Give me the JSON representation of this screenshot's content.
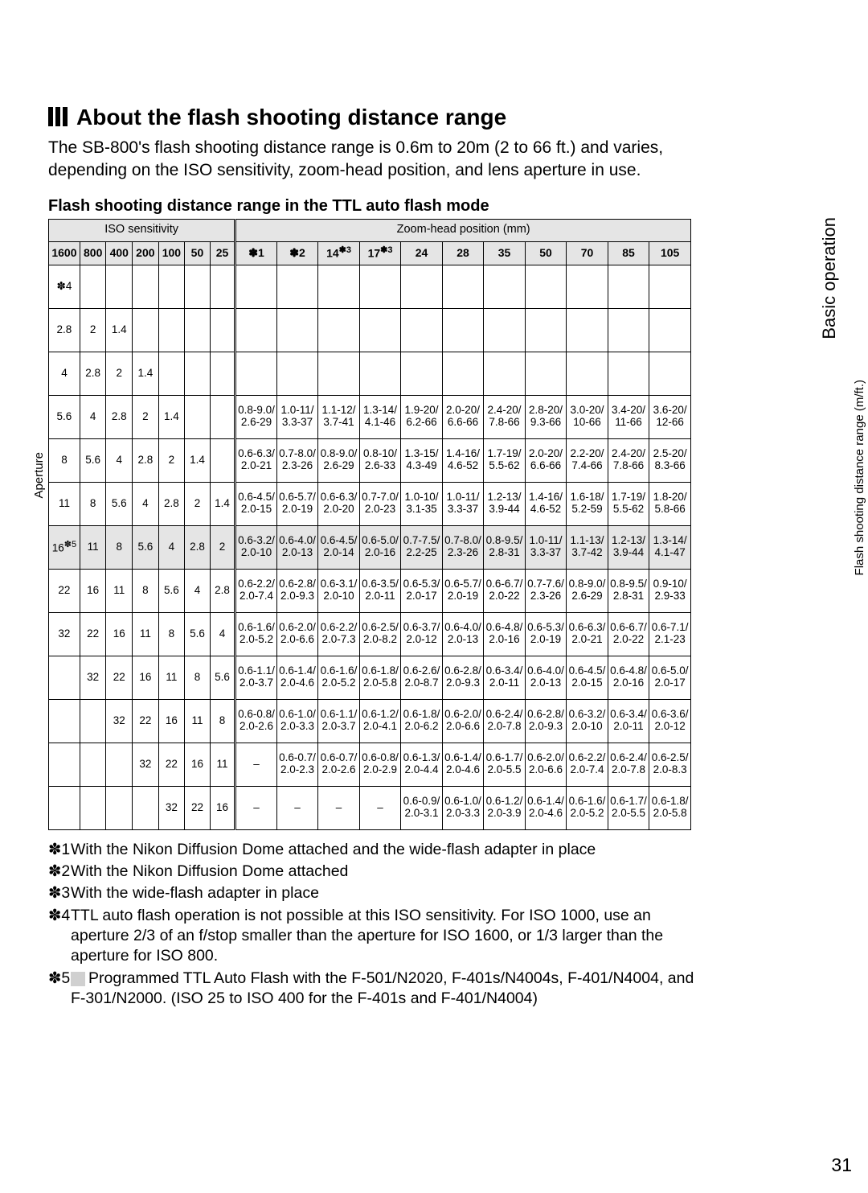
{
  "section_tab": "Basic operation",
  "title": "About the flash shooting distance range",
  "intro": "The SB-800's flash shooting distance range is 0.6m to 20m (2 to 66 ft.) and varies, depending on the ISO sensitivity, zoom-head position, and lens aperture in use.",
  "subtitle": "Flash shooting distance range in the TTL auto flash mode",
  "iso_label": "ISO sensitivity",
  "zoom_label": "Zoom-head position (mm)",
  "side_left": "Aperture",
  "side_right": "Flash shooting distance range (m/ft.)",
  "iso_cols": [
    "1600",
    "800",
    "400",
    "200",
    "100",
    "50",
    "25"
  ],
  "zoom_cols": [
    "✽1",
    "✽2",
    "14",
    "17",
    "24",
    "28",
    "35",
    "50",
    "70",
    "85",
    "105"
  ],
  "zoom_sup": {
    "2": "✽3",
    "3": "✽3"
  },
  "aperture_rows": [
    [
      "✽4",
      "",
      "",
      "",
      "",
      "",
      ""
    ],
    [
      "2.8",
      "2",
      "1.4",
      "",
      "",
      "",
      ""
    ],
    [
      "4",
      "2.8",
      "2",
      "1.4",
      "",
      "",
      ""
    ],
    [
      "5.6",
      "4",
      "2.8",
      "2",
      "1.4",
      "",
      ""
    ],
    [
      "8",
      "5.6",
      "4",
      "2.8",
      "2",
      "1.4",
      ""
    ],
    [
      "11",
      "8",
      "5.6",
      "4",
      "2.8",
      "2",
      "1.4"
    ],
    [
      "16",
      "11",
      "8",
      "5.6",
      "4",
      "2.8",
      "2"
    ],
    [
      "22",
      "16",
      "11",
      "8",
      "5.6",
      "4",
      "2.8"
    ],
    [
      "32",
      "22",
      "16",
      "11",
      "8",
      "5.6",
      "4"
    ],
    [
      "",
      "32",
      "22",
      "16",
      "11",
      "8",
      "5.6"
    ],
    [
      "",
      "",
      "32",
      "22",
      "16",
      "11",
      "8"
    ],
    [
      "",
      "",
      "",
      "32",
      "22",
      "16",
      "11"
    ],
    [
      "",
      "",
      "",
      "",
      "32",
      "22",
      "16"
    ]
  ],
  "row16_sup": "✽5",
  "data_rows": [
    [
      "",
      "",
      "",
      "",
      "",
      "",
      "",
      "",
      "",
      "",
      ""
    ],
    [
      "",
      "",
      "",
      "",
      "",
      "",
      "",
      "",
      "",
      "",
      ""
    ],
    [
      "",
      "",
      "",
      "",
      "",
      "",
      "",
      "",
      "",
      "",
      ""
    ],
    [
      "0.8-9.0/ 2.6-29",
      "1.0-11/ 3.3-37",
      "1.1-12/ 3.7-41",
      "1.3-14/ 4.1-46",
      "1.9-20/ 6.2-66",
      "2.0-20/ 6.6-66",
      "2.4-20/ 7.8-66",
      "2.8-20/ 9.3-66",
      "3.0-20/ 10-66",
      "3.4-20/ 11-66",
      "3.6-20/ 12-66"
    ],
    [
      "0.6-6.3/ 2.0-21",
      "0.7-8.0/ 2.3-26",
      "0.8-9.0/ 2.6-29",
      "0.8-10/ 2.6-33",
      "1.3-15/ 4.3-49",
      "1.4-16/ 4.6-52",
      "1.7-19/ 5.5-62",
      "2.0-20/ 6.6-66",
      "2.2-20/ 7.4-66",
      "2.4-20/ 7.8-66",
      "2.5-20/ 8.3-66"
    ],
    [
      "0.6-4.5/ 2.0-15",
      "0.6-5.7/ 2.0-19",
      "0.6-6.3/ 2.0-20",
      "0.7-7.0/ 2.0-23",
      "1.0-10/ 3.1-35",
      "1.0-11/ 3.3-37",
      "1.2-13/ 3.9-44",
      "1.4-16/ 4.6-52",
      "1.6-18/ 5.2-59",
      "1.7-19/ 5.5-62",
      "1.8-20/ 5.8-66"
    ],
    [
      "0.6-3.2/ 2.0-10",
      "0.6-4.0/ 2.0-13",
      "0.6-4.5/ 2.0-14",
      "0.6-5.0/ 2.0-16",
      "0.7-7.5/ 2.2-25",
      "0.7-8.0/ 2.3-26",
      "0.8-9.5/ 2.8-31",
      "1.0-11/ 3.3-37",
      "1.1-13/ 3.7-42",
      "1.2-13/ 3.9-44",
      "1.3-14/ 4.1-47"
    ],
    [
      "0.6-2.2/ 2.0-7.4",
      "0.6-2.8/ 2.0-9.3",
      "0.6-3.1/ 2.0-10",
      "0.6-3.5/ 2.0-11",
      "0.6-5.3/ 2.0-17",
      "0.6-5.7/ 2.0-19",
      "0.6-6.7/ 2.0-22",
      "0.7-7.6/ 2.3-26",
      "0.8-9.0/ 2.6-29",
      "0.8-9.5/ 2.8-31",
      "0.9-10/ 2.9-33"
    ],
    [
      "0.6-1.6/ 2.0-5.2",
      "0.6-2.0/ 2.0-6.6",
      "0.6-2.2/ 2.0-7.3",
      "0.6-2.5/ 2.0-8.2",
      "0.6-3.7/ 2.0-12",
      "0.6-4.0/ 2.0-13",
      "0.6-4.8/ 2.0-16",
      "0.6-5.3/ 2.0-19",
      "0.6-6.3/ 2.0-21",
      "0.6-6.7/ 2.0-22",
      "0.6-7.1/ 2.1-23"
    ],
    [
      "0.6-1.1/ 2.0-3.7",
      "0.6-1.4/ 2.0-4.6",
      "0.6-1.6/ 2.0-5.2",
      "0.6-1.8/ 2.0-5.8",
      "0.6-2.6/ 2.0-8.7",
      "0.6-2.8/ 2.0-9.3",
      "0.6-3.4/ 2.0-11",
      "0.6-4.0/ 2.0-13",
      "0.6-4.5/ 2.0-15",
      "0.6-4.8/ 2.0-16",
      "0.6-5.0/ 2.0-17"
    ],
    [
      "0.6-0.8/ 2.0-2.6",
      "0.6-1.0/ 2.0-3.3",
      "0.6-1.1/ 2.0-3.7",
      "0.6-1.2/ 2.0-4.1",
      "0.6-1.8/ 2.0-6.2",
      "0.6-2.0/ 2.0-6.6",
      "0.6-2.4/ 2.0-7.8",
      "0.6-2.8/ 2.0-9.3",
      "0.6-3.2/ 2.0-10",
      "0.6-3.4/ 2.0-11",
      "0.6-3.6/ 2.0-12"
    ],
    [
      "–",
      "0.6-0.7/ 2.0-2.3",
      "0.6-0.7/ 2.0-2.6",
      "0.6-0.8/ 2.0-2.9",
      "0.6-1.3/ 2.0-4.4",
      "0.6-1.4/ 2.0-4.6",
      "0.6-1.7/ 2.0-5.5",
      "0.6-2.0/ 2.0-6.6",
      "0.6-2.2/ 2.0-7.4",
      "0.6-2.4/ 2.0-7.8",
      "0.6-2.5/ 2.0-8.3"
    ],
    [
      "–",
      "–",
      "–",
      "–",
      "0.6-0.9/ 2.0-3.1",
      "0.6-1.0/ 2.0-3.3",
      "0.6-1.2/ 2.0-3.9",
      "0.6-1.4/ 2.0-4.6",
      "0.6-1.6/ 2.0-5.2",
      "0.6-1.7/ 2.0-5.5",
      "0.6-1.8/ 2.0-5.8"
    ]
  ],
  "footnotes": [
    "With the Nikon Diffusion Dome attached and the wide-flash adapter in place",
    "With the Nikon Diffusion Dome attached",
    "With the wide-flash adapter in place",
    "TTL auto flash operation is not possible at this ISO sensitivity. For ISO 1000, use an aperture 2/3 of an f/stop smaller than the aperture for ISO 1600, or 1/3 larger than the aperture for ISO 800.",
    "Programmed TTL Auto Flash with the F-501/N2020, F-401s/N4004s, F-401/N4004, and F-301/N2000. (ISO 25 to ISO 400 for the F-401s and F-401/N4004)"
  ],
  "page_num": "31"
}
